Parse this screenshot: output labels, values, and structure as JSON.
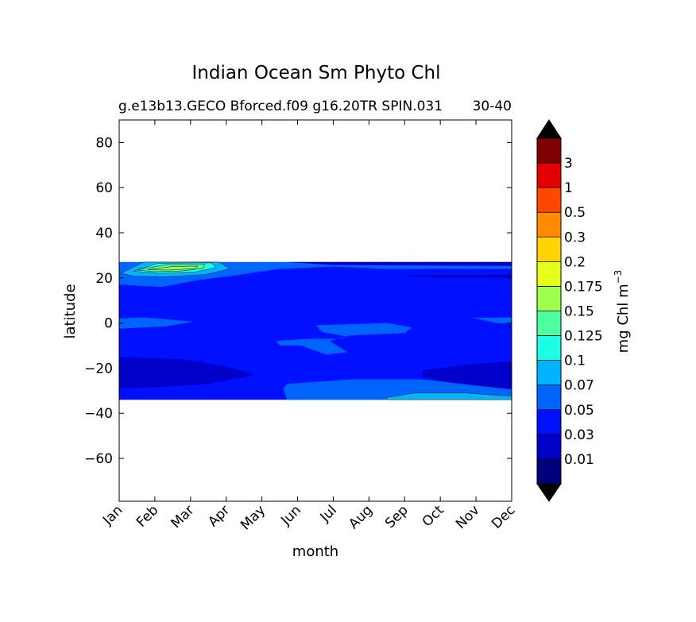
{
  "chart_data": {
    "type": "heatmap",
    "title": "Indian Ocean Sm Phyto Chl",
    "subtitle_left": "g.e13b13.GECO Bforced.f09 g16.20TR SPIN.031",
    "subtitle_right": "30-40",
    "xlabel": "month",
    "ylabel": "latitude",
    "x_ticks": [
      "Jan",
      "Feb",
      "Mar",
      "Apr",
      "May",
      "Jun",
      "Jul",
      "Aug",
      "Sep",
      "Oct",
      "Nov",
      "Dec"
    ],
    "y_ticks": [
      80,
      60,
      40,
      20,
      0,
      -20,
      -40,
      -60
    ],
    "y_tick_labels": [
      "80",
      "60",
      "40",
      "20",
      "0",
      "−20",
      "−40",
      "−60"
    ],
    "xlim": [
      0,
      11
    ],
    "ylim": [
      -79,
      90
    ],
    "data_lat_range": [
      -34,
      27
    ],
    "colorbar": {
      "label": "mg Chl m",
      "label_exponent": "−3",
      "levels": [
        "0.01",
        "0.03",
        "0.05",
        "0.07",
        "0.1",
        "0.125",
        "0.15",
        "0.175",
        "0.2",
        "0.3",
        "0.5",
        "1",
        "3"
      ],
      "colors": [
        "#00007f",
        "#0000c8",
        "#0010ff",
        "#0064ff",
        "#00b4ff",
        "#1affe5",
        "#4dff9f",
        "#9fff4d",
        "#e5ff1a",
        "#ffd400",
        "#ff8c00",
        "#ff4800",
        "#e20000",
        "#7f0000"
      ],
      "under_color": "#000000",
      "over_color": "#000000"
    },
    "regions": [
      {
        "name": "field-0.05-0.07",
        "color_index": 2,
        "months_lat": [
          [
            0,
            27
          ],
          [
            11,
            27
          ],
          [
            11,
            -34
          ],
          [
            0,
            -34
          ]
        ]
      },
      {
        "name": "band-0.07-north",
        "color_index": 3,
        "months_lat": [
          [
            0,
            27
          ],
          [
            11,
            27
          ],
          [
            11,
            24
          ],
          [
            7.5,
            24
          ],
          [
            6,
            25
          ],
          [
            4.5,
            24
          ],
          [
            3.2,
            21
          ],
          [
            2.2,
            19
          ],
          [
            1.2,
            16
          ],
          [
            0,
            17
          ]
        ]
      },
      {
        "name": "band-0.03-north-top",
        "color_index": 1,
        "months_lat": [
          [
            4.7,
            27
          ],
          [
            11,
            27
          ],
          [
            11,
            25.3
          ],
          [
            8.5,
            25.5
          ],
          [
            6,
            25.7
          ]
        ]
      },
      {
        "name": "band-0.03-north-right",
        "color_index": 1,
        "months_lat": [
          [
            7.7,
            21
          ],
          [
            9,
            20
          ],
          [
            11,
            20
          ],
          [
            11,
            21.5
          ]
        ]
      },
      {
        "name": "blob-0.1-feb",
        "color_index": 4,
        "months_lat": [
          [
            0.05,
            22
          ],
          [
            0.7,
            27
          ],
          [
            2.8,
            27
          ],
          [
            3.1,
            24
          ],
          [
            2.4,
            21.5
          ],
          [
            1.3,
            20.5
          ],
          [
            0.4,
            20.8
          ]
        ]
      },
      {
        "name": "blob-0.125-feb",
        "color_index": 5,
        "months_lat": [
          [
            0.4,
            23
          ],
          [
            1.1,
            26.5
          ],
          [
            2.6,
            26.7
          ],
          [
            2.7,
            24.5
          ],
          [
            2.1,
            22.5
          ],
          [
            1.1,
            22
          ]
        ]
      },
      {
        "name": "blob-0.15-feb",
        "color_index": 6,
        "months_lat": [
          [
            0.5,
            23.5
          ],
          [
            1.3,
            25.8
          ],
          [
            2.4,
            26
          ],
          [
            2.35,
            24.2
          ],
          [
            1.7,
            23
          ],
          [
            1,
            22.8
          ]
        ]
      },
      {
        "name": "blob-0.175-feb",
        "color_index": 7,
        "months_lat": [
          [
            0.8,
            23.6
          ],
          [
            1.5,
            25
          ],
          [
            2.2,
            25.2
          ],
          [
            2.1,
            24.1
          ],
          [
            1.4,
            23.5
          ]
        ]
      },
      {
        "name": "blob-0.07-eq-left",
        "color_index": 3,
        "months_lat": [
          [
            0,
            2
          ],
          [
            0.7,
            2.5
          ],
          [
            2.1,
            0.6
          ],
          [
            1.3,
            -1.5
          ],
          [
            0,
            -2.5
          ]
        ]
      },
      {
        "name": "blob-0.07-eq-right",
        "color_index": 3,
        "months_lat": [
          [
            11,
            2.5
          ],
          [
            9.9,
            2.3
          ],
          [
            10.6,
            0
          ],
          [
            11,
            -0.3
          ]
        ]
      },
      {
        "name": "blob-0.07-mid",
        "color_index": 3,
        "months_lat": [
          [
            4.4,
            -8
          ],
          [
            5.3,
            -7
          ],
          [
            6.2,
            -7
          ],
          [
            6.4,
            -6
          ],
          [
            5.7,
            -4
          ],
          [
            5.5,
            -1
          ],
          [
            7.5,
            0
          ],
          [
            8.2,
            -2
          ],
          [
            8,
            -4.5
          ],
          [
            6.5,
            -5.5
          ],
          [
            5.9,
            -8
          ],
          [
            6.4,
            -13
          ],
          [
            5.8,
            -14
          ],
          [
            5.1,
            -10
          ],
          [
            4.5,
            -10
          ]
        ]
      },
      {
        "name": "band-0.03-south",
        "color_index": 1,
        "months_lat": [
          [
            0,
            -15
          ],
          [
            1.8,
            -16
          ],
          [
            3.2,
            -20
          ],
          [
            3.8,
            -23
          ],
          [
            2.5,
            -27
          ],
          [
            1,
            -28.5
          ],
          [
            0,
            -29
          ]
        ]
      },
      {
        "name": "band-0.03-south-right",
        "color_index": 1,
        "months_lat": [
          [
            11,
            -17
          ],
          [
            10,
            -18
          ],
          [
            8.5,
            -21
          ],
          [
            8.5,
            -24
          ],
          [
            9.8,
            -28
          ],
          [
            11,
            -29
          ]
        ]
      },
      {
        "name": "band-0.07-south",
        "color_index": 3,
        "months_lat": [
          [
            4.7,
            -27
          ],
          [
            6.5,
            -25
          ],
          [
            8.5,
            -25
          ],
          [
            11,
            -29.5
          ],
          [
            11,
            -34
          ],
          [
            4.7,
            -34
          ],
          [
            4.6,
            -29
          ]
        ]
      },
      {
        "name": "band-0.1-south",
        "color_index": 4,
        "months_lat": [
          [
            7.5,
            -33
          ],
          [
            8.3,
            -31
          ],
          [
            9.7,
            -31
          ],
          [
            11,
            -32.5
          ],
          [
            11,
            -34
          ],
          [
            7.5,
            -34
          ]
        ]
      }
    ]
  }
}
